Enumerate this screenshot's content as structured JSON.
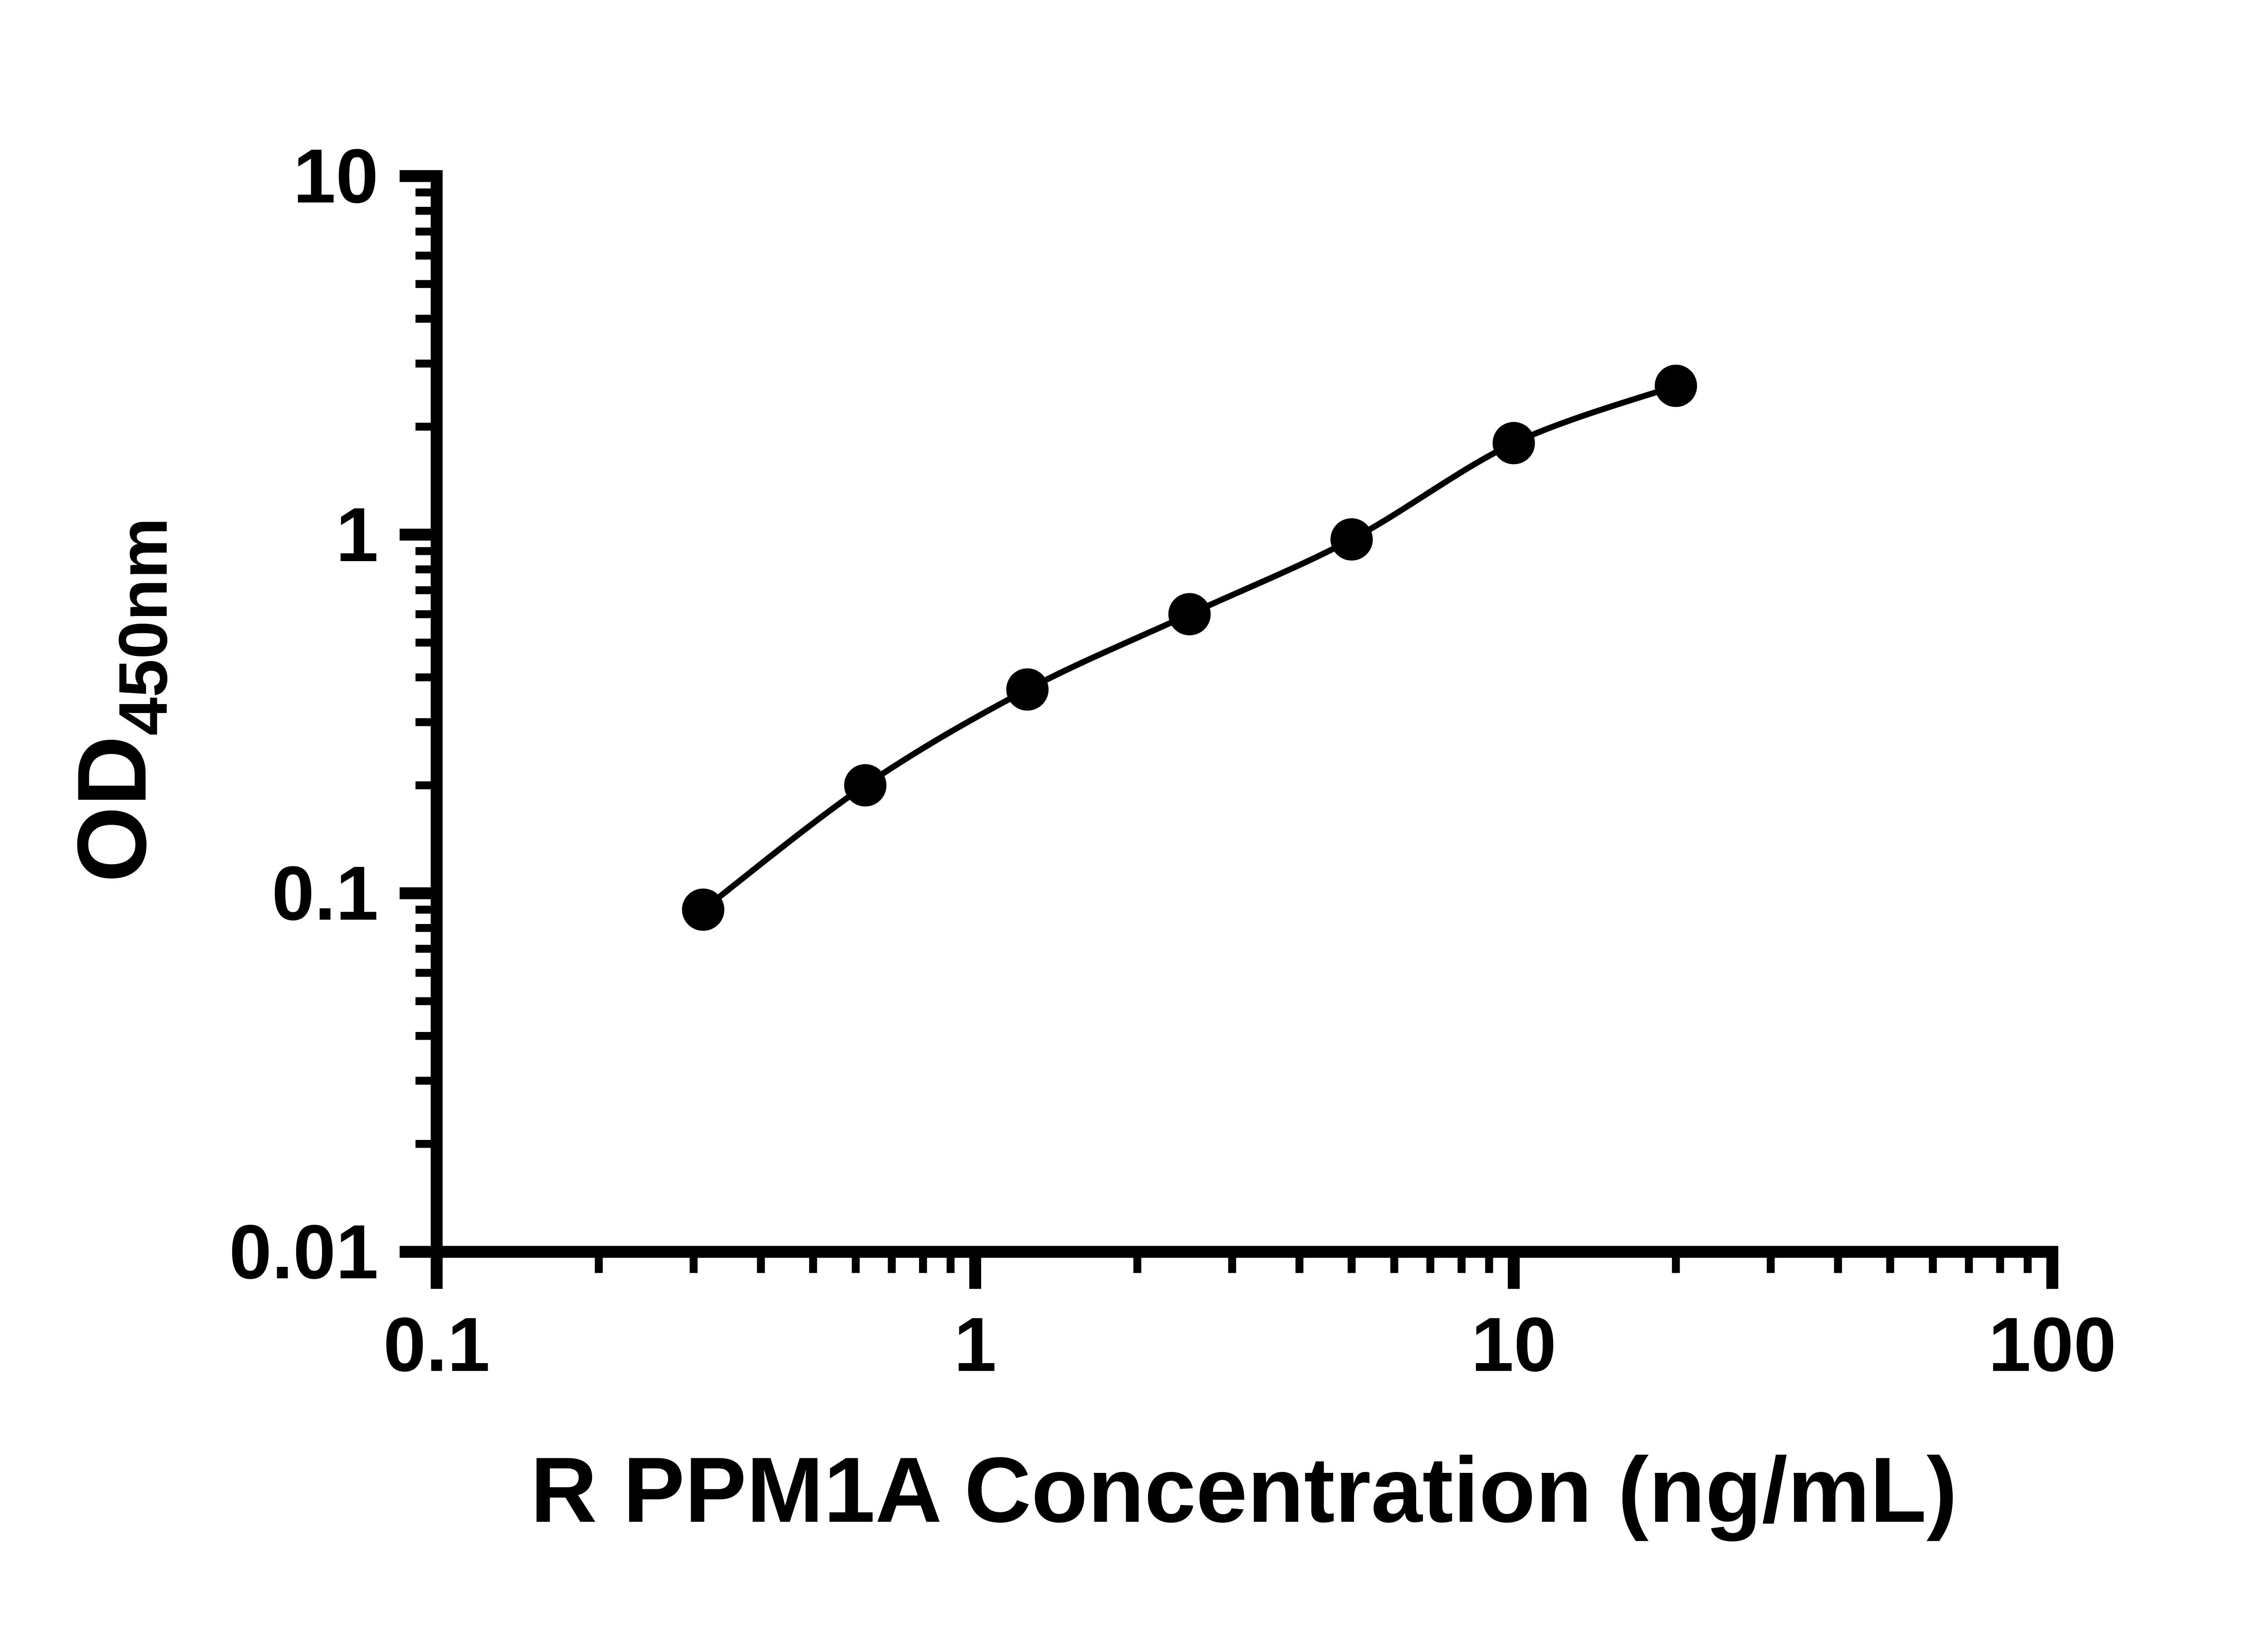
{
  "chart_data": {
    "type": "scatter",
    "title": "",
    "xlabel": "R PPM1A Concentration (ng/mL)",
    "ylabel": "OD450nm",
    "ylabel_main": "OD",
    "ylabel_sub": "450nm",
    "x_scale": "log",
    "y_scale": "log",
    "xlim": [
      0.1,
      100
    ],
    "ylim": [
      0.01,
      10
    ],
    "x_tick_values": [
      0.1,
      1,
      10,
      100
    ],
    "x_tick_labels": [
      "0.1",
      "1",
      "10",
      "100"
    ],
    "y_tick_values": [
      10,
      1,
      0.1,
      0.01
    ],
    "y_tick_labels": [
      "10",
      "1",
      "0.1",
      "0.01"
    ],
    "grid": false,
    "legend": "none",
    "series": [
      {
        "x": [
          0.3125,
          0.625,
          1.25,
          2.5,
          5,
          10,
          20
        ],
        "y": [
          0.09,
          0.2,
          0.37,
          0.6,
          0.97,
          1.8,
          2.6
        ],
        "marker": "filled-circle",
        "marker_color": "#000000",
        "line_color": "#000000"
      }
    ],
    "colors": {
      "axis": "#000000",
      "background": "#ffffff"
    }
  }
}
